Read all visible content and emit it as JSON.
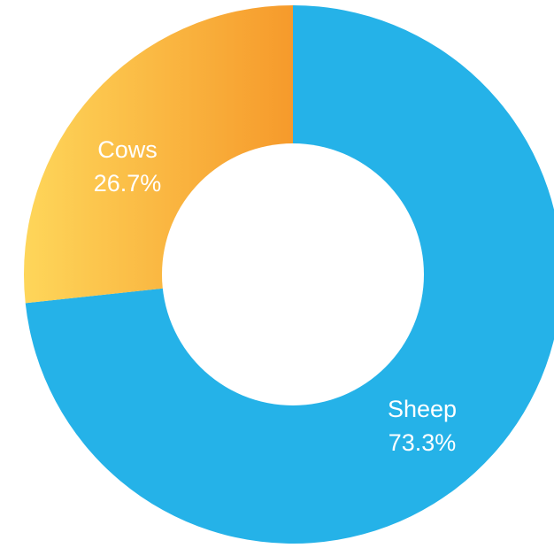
{
  "chart_data": {
    "type": "pie",
    "variant": "donut",
    "slices": [
      {
        "label": "Sheep",
        "percent_label": "73.3%",
        "value": 73.3,
        "color": "#25b2e8"
      },
      {
        "label": "Cows",
        "percent_label": "26.7%",
        "value": 26.7,
        "color": "#f9a531",
        "gradient": [
          "#fed65a",
          "#f69a2b"
        ]
      }
    ]
  }
}
